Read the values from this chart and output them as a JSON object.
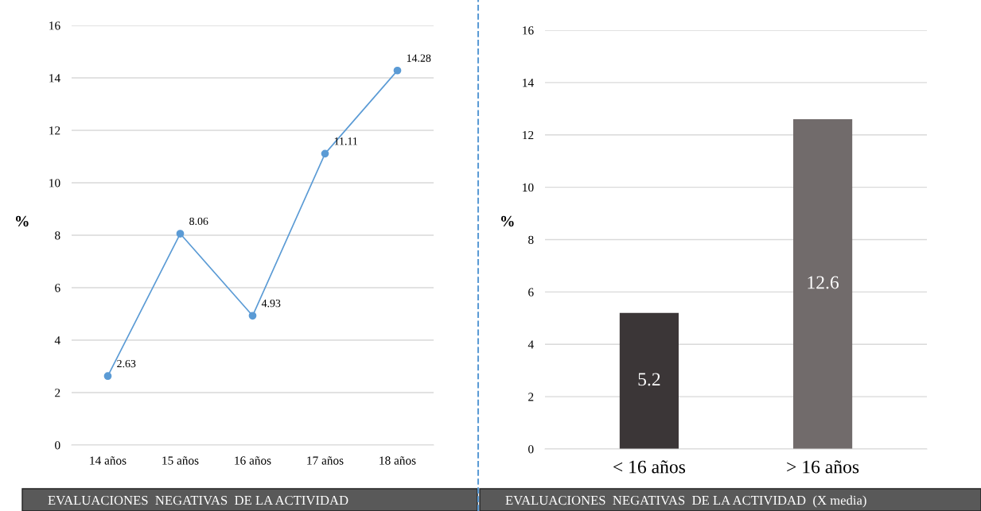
{
  "chart_data": [
    {
      "type": "line",
      "ylabel": "%",
      "categories": [
        "14 años",
        "15 años",
        "16 años",
        "17 años",
        "18 años"
      ],
      "values": [
        2.63,
        8.06,
        4.93,
        11.11,
        14.28
      ],
      "color": "#5b9bd5",
      "marker": "circle",
      "ylim": [
        0,
        16
      ],
      "yticks": [
        0,
        2,
        4,
        6,
        8,
        10,
        12,
        14,
        16
      ],
      "grid": "y",
      "data_labels": true,
      "annotations": [
        "EVALUACIONES  NEGATIVAS  DE LA ACTIVIDAD"
      ]
    },
    {
      "type": "bar",
      "ylabel": "%",
      "categories": [
        "< 16 años",
        "> 16 años"
      ],
      "values": [
        5.2,
        12.6
      ],
      "colors": [
        "#3b3637",
        "#716b6b"
      ],
      "ylim": [
        0,
        16
      ],
      "yticks": [
        0,
        2,
        4,
        6,
        8,
        10,
        12,
        14,
        16
      ],
      "grid": "y",
      "data_labels": true,
      "annotations": [
        "EVALUACIONES  NEGATIVAS  DE LA ACTIVIDAD  (X media)"
      ]
    }
  ]
}
